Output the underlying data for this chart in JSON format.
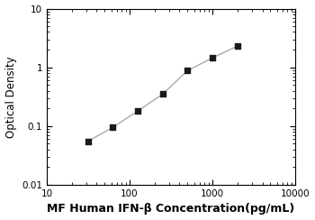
{
  "x": [
    31.25,
    62.5,
    125,
    250,
    500,
    1000,
    2000
  ],
  "y": [
    0.055,
    0.095,
    0.18,
    0.35,
    0.88,
    1.45,
    2.3
  ],
  "line_color": "#aaaaaa",
  "marker_color": "#1a1a1a",
  "marker": "s",
  "marker_size": 4.5,
  "line_width": 1.0,
  "xlabel": "MF Human IFN-β Concentration(pg/mL)",
  "ylabel": "Optical Density",
  "xlim": [
    10,
    10000
  ],
  "ylim": [
    0.01,
    10
  ],
  "xlabel_fontsize": 9,
  "ylabel_fontsize": 8.5,
  "tick_fontsize": 7.5,
  "background_color": "#ffffff"
}
